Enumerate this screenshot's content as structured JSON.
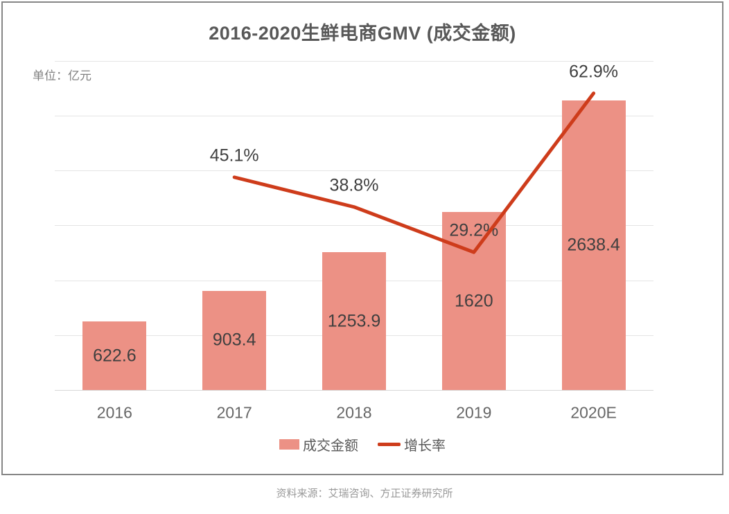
{
  "title": "2016-2020生鲜电商GMV (成交金额)",
  "unit_label": "单位：亿元",
  "source": "资料来源：艾瑞咨询、方正证券研究所",
  "legend": {
    "bar_label": "成交金额",
    "line_label": "增长率"
  },
  "colors": {
    "bar": "#EC9185",
    "line": "#CE3C1B",
    "grid": "#E4E4E4",
    "axis": "#D8D8D8",
    "border": "#868686",
    "title_text": "#585858",
    "value_text": "#3F3F3F",
    "axis_text": "#666666",
    "muted_text": "#7F7F7F"
  },
  "chart_data": {
    "type": "bar+line",
    "title": "2016-2020生鲜电商GMV (成交金额)",
    "ylabel": "单位：亿元",
    "categories": [
      "2016",
      "2017",
      "2018",
      "2019",
      "2020E"
    ],
    "series": [
      {
        "name": "成交金额",
        "type": "bar",
        "unit": "亿元",
        "values": [
          622.6,
          903.4,
          1253.9,
          1620,
          2638.4
        ],
        "labels": [
          "622.6",
          "903.4",
          "1253.9",
          "1620",
          "2638.4"
        ]
      },
      {
        "name": "增长率",
        "type": "line",
        "unit": "%",
        "values": [
          null,
          45.1,
          38.8,
          29.2,
          62.9
        ],
        "labels": [
          null,
          "45.1%",
          "38.8%",
          "29.2%",
          "62.9%"
        ]
      }
    ],
    "ylim": [
      0,
      3000
    ],
    "grid_step": 500,
    "grid": "horizontal",
    "legend_position": "bottom"
  }
}
